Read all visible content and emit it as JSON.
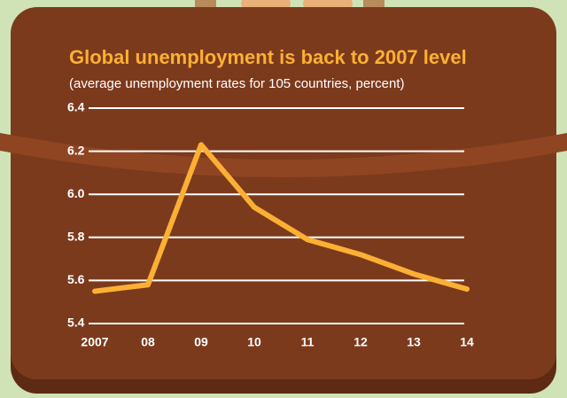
{
  "chart_data": {
    "type": "line",
    "title": "Global unemployment is back to 2007 level",
    "subtitle": "(average unemployment rates for 105 countries, percent)",
    "categories": [
      "2007",
      "08",
      "09",
      "10",
      "11",
      "12",
      "13",
      "14"
    ],
    "values": [
      5.55,
      5.58,
      6.23,
      5.94,
      5.79,
      5.72,
      5.63,
      5.56
    ],
    "color": "#fbb034",
    "ylim": [
      5.4,
      6.4
    ],
    "yticks": [
      5.4,
      5.6,
      5.8,
      {
        "value": 6,
        "label": "6.0"
      },
      6.2,
      6.4
    ],
    "grid": true
  }
}
